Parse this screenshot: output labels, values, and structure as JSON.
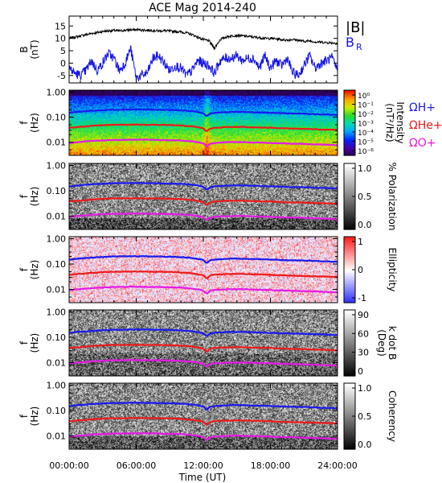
{
  "chart_data": {
    "title": "ACE Mag 2014-240",
    "xlabel": "Time (UT)",
    "x_tick_labels": [
      "00:00:00",
      "06:00:00",
      "12:00:00",
      "18:00:00",
      "24:00:00"
    ],
    "x_range_hours": [
      0,
      24
    ],
    "panels": [
      {
        "type": "line",
        "ylabel_line1": "B",
        "ylabel_line2": "(nT)",
        "ylim": [
          -8,
          19
        ],
        "y_tick_labels": [
          "15",
          "10",
          "5",
          "0",
          "-5"
        ],
        "y_tick_values": [
          15,
          10,
          5,
          0,
          -5
        ],
        "series": [
          {
            "name": "|B|",
            "color": "#000000",
            "x": [
              0,
              0.5,
              1,
              1.5,
              2,
              2.5,
              3,
              3.5,
              4,
              4.5,
              5,
              5.5,
              6,
              6.5,
              7,
              7.5,
              8,
              8.5,
              9,
              9.5,
              10,
              10.5,
              11,
              11.5,
              12,
              12.5,
              13,
              13.5,
              14,
              14.5,
              15,
              15.5,
              16,
              16.5,
              17,
              17.5,
              18,
              18.5,
              19,
              19.5,
              20,
              20.5,
              21,
              21.5,
              22,
              22.5,
              23,
              23.5,
              24
            ],
            "values": [
              10,
              10.5,
              11,
              11.5,
              12,
              12.3,
              12.8,
              13,
              13.2,
              13,
              13.3,
              13.4,
              13.5,
              13.4,
              13.3,
              13.2,
              13,
              13.1,
              12.9,
              12.8,
              12.6,
              12.2,
              11.5,
              10.5,
              9.5,
              9,
              6,
              9.5,
              10.5,
              11,
              11.2,
              11,
              10.8,
              10.5,
              10.3,
              10,
              10,
              9.8,
              9.5,
              9.3,
              9.6,
              9.2,
              8.8,
              9,
              8.6,
              8.5,
              8.3,
              8.2,
              8
            ]
          },
          {
            "name": "B_R",
            "color": "#1414e6",
            "x": [
              0,
              0.5,
              1,
              1.5,
              2,
              2.5,
              3,
              3.5,
              4,
              4.5,
              5,
              5.5,
              6,
              6.5,
              7,
              7.5,
              8,
              8.5,
              9,
              9.5,
              10,
              10.5,
              11,
              11.5,
              12,
              12.5,
              13,
              13.5,
              14,
              14.5,
              15,
              15.5,
              16,
              16.5,
              17,
              17.5,
              18,
              18.5,
              19,
              19.5,
              20,
              20.5,
              21,
              21.5,
              22,
              22.5,
              23,
              23.5,
              24
            ],
            "values": [
              -2,
              -4,
              -5,
              -3,
              1,
              -3,
              0,
              4,
              2,
              -3,
              0,
              6,
              -6,
              -5,
              -4,
              2,
              3,
              0,
              -3,
              -1,
              -2,
              -5,
              -3,
              1,
              0,
              -1,
              -4,
              1,
              2,
              2,
              3,
              1,
              2,
              2,
              -2,
              3,
              -2,
              1,
              -1,
              2,
              -4,
              -5,
              -1,
              3,
              -2,
              0,
              1,
              2,
              -3
            ]
          }
        ]
      },
      {
        "type": "heatmap",
        "ylabel_line1": "f",
        "ylabel_line2": "(Hz)",
        "y_scale": "log",
        "ylim": [
          0.003,
          1.2
        ],
        "y_tick_labels": [
          "1.00",
          "0.10",
          "0.01"
        ],
        "colorbar_scale": "log",
        "colorbar_title_line1": "Intensity",
        "colorbar_title_line2": "(nT²/Hz)",
        "colorbar_tick_labels": [
          "10⁰",
          "10⁻¹",
          "10⁻²",
          "10⁻³",
          "10⁻⁴",
          "10⁻⁵",
          "10⁻⁶"
        ],
        "colorbar_range": [
          -6.2,
          0.2
        ],
        "legend": [
          {
            "text": "ΩH+",
            "color": "#1a1aee"
          },
          {
            "text": "ΩHe+",
            "color": "#ee1a1a"
          },
          {
            "text": "ΩO+",
            "color": "#e61ae6"
          }
        ]
      },
      {
        "type": "heatmap",
        "ylabel_line1": "f",
        "ylabel_line2": "(Hz)",
        "y_scale": "log",
        "y_tick_labels": [
          "1.00",
          "0.10",
          "0.01"
        ],
        "colorbar_title_line1": "% Polarization",
        "colorbar_title_line2": "",
        "colorbar_tick_labels": [
          "1.0",
          "0.5",
          "0.0"
        ],
        "colorbar_range": [
          0,
          1
        ]
      },
      {
        "type": "heatmap",
        "ylabel_line1": "f",
        "ylabel_line2": "(Hz)",
        "y_scale": "log",
        "y_tick_labels": [
          "1.00",
          "0.10",
          "0.01"
        ],
        "colorbar_title_line1": "Ellipticity",
        "colorbar_title_line2": "",
        "colorbar_tick_labels": [
          "1",
          "0",
          "-1"
        ],
        "colorbar_range": [
          -1,
          1
        ]
      },
      {
        "type": "heatmap",
        "ylabel_line1": "f",
        "ylabel_line2": "(Hz)",
        "y_scale": "log",
        "y_tick_labels": [
          "1.00",
          "0.10",
          "0.01"
        ],
        "colorbar_title_line1": "k dot B",
        "colorbar_title_line2": "(Deg)",
        "colorbar_tick_labels": [
          "90",
          "60",
          "30",
          "0"
        ],
        "colorbar_range": [
          0,
          90
        ]
      },
      {
        "type": "heatmap",
        "ylabel_line1": "f",
        "ylabel_line2": "(Hz)",
        "y_scale": "log",
        "y_tick_labels": [
          "1.00",
          "0.10",
          "0.01"
        ],
        "colorbar_title_line1": "Coherency",
        "colorbar_title_line2": "",
        "colorbar_tick_labels": [
          "1.0",
          "0.5",
          "0.0"
        ],
        "colorbar_range": [
          0,
          1
        ]
      }
    ],
    "gyrofrequency_lines_hz": {
      "hours": [
        0,
        1,
        2,
        3,
        4,
        5,
        6,
        7,
        8,
        9,
        10,
        11,
        11.5,
        12,
        12.3,
        12.6,
        13,
        14,
        15,
        16,
        17,
        18,
        19,
        20,
        21,
        22,
        23,
        24
      ],
      "H+": [
        0.15,
        0.165,
        0.18,
        0.19,
        0.198,
        0.2,
        0.203,
        0.201,
        0.198,
        0.194,
        0.188,
        0.173,
        0.16,
        0.145,
        0.105,
        0.14,
        0.15,
        0.16,
        0.164,
        0.16,
        0.155,
        0.15,
        0.145,
        0.14,
        0.138,
        0.132,
        0.128,
        0.122
      ],
      "He+": [
        0.038,
        0.041,
        0.045,
        0.048,
        0.05,
        0.05,
        0.051,
        0.05,
        0.05,
        0.049,
        0.047,
        0.043,
        0.04,
        0.036,
        0.026,
        0.035,
        0.038,
        0.04,
        0.041,
        0.04,
        0.039,
        0.038,
        0.036,
        0.035,
        0.034,
        0.033,
        0.032,
        0.031
      ],
      "O+": [
        0.0094,
        0.0103,
        0.0113,
        0.0119,
        0.0124,
        0.0125,
        0.0127,
        0.0126,
        0.0124,
        0.0121,
        0.0118,
        0.0108,
        0.01,
        0.0091,
        0.0066,
        0.0088,
        0.0094,
        0.01,
        0.0103,
        0.01,
        0.0097,
        0.0094,
        0.0091,
        0.0088,
        0.0086,
        0.0083,
        0.008,
        0.0076
      ]
    }
  }
}
